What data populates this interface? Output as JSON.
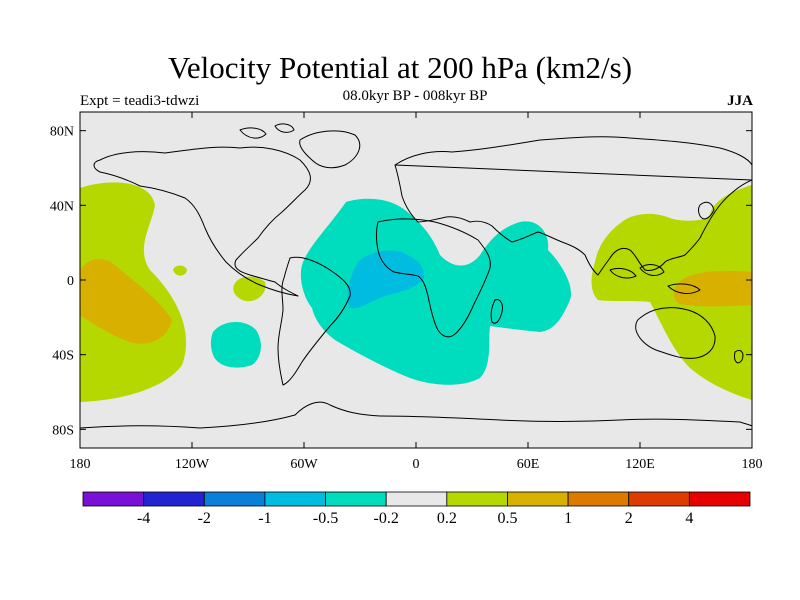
{
  "title": "Velocity Potential at 200 hPa (km2/s)",
  "subtitle": "08.0kyr BP - 008kyr BP",
  "experiment": "Expt = teadi3-tdwzi",
  "season": "JJA",
  "map": {
    "lon_range": [
      -180,
      180
    ],
    "lat_range": [
      -90,
      90
    ],
    "lat_ticks": [
      {
        "lat": 80,
        "label": "80N"
      },
      {
        "lat": 40,
        "label": "40N"
      },
      {
        "lat": 0,
        "label": "0"
      },
      {
        "lat": -40,
        "label": "40S"
      },
      {
        "lat": -80,
        "label": "80S"
      }
    ],
    "lon_ticks": [
      {
        "lon": -180,
        "label": "180"
      },
      {
        "lon": -120,
        "label": "120W"
      },
      {
        "lon": -60,
        "label": "60W"
      },
      {
        "lon": 0,
        "label": "0"
      },
      {
        "lon": 60,
        "label": "60E"
      },
      {
        "lon": 120,
        "label": "120E"
      },
      {
        "lon": 180,
        "label": "180"
      }
    ],
    "background_color": "#e8e8e8",
    "coastline_color": "#000000"
  },
  "colorbar": {
    "colors": [
      "#7a0fd6",
      "#2323d2",
      "#0a7fd8",
      "#00bce0",
      "#00dcbe",
      "#e8e8e8",
      "#b4d800",
      "#d8b000",
      "#dc7a00",
      "#dc3c00",
      "#e60000"
    ],
    "labels": [
      "-4",
      "-2",
      "-1",
      "-0.5",
      "-0.2",
      "0.2",
      "0.5",
      "1",
      "2",
      "4"
    ]
  }
}
